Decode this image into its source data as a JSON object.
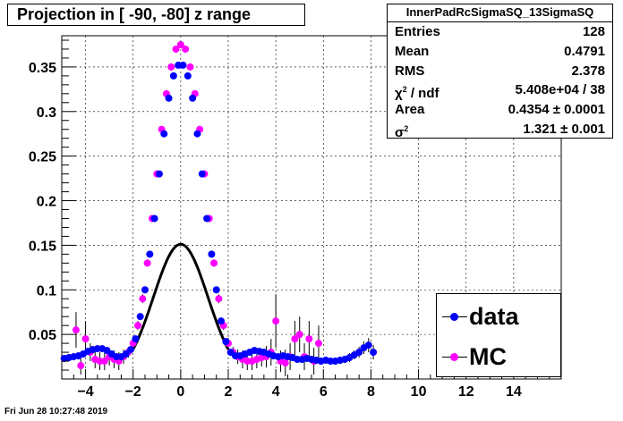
{
  "plot": {
    "title": "Projection in [ -90, -80] z range",
    "timestamp": "Fri Jun 28 10:27:48 2019"
  },
  "stats": {
    "name": "InnerPadRcSigmaSQ_13SigmaSQ",
    "rows": [
      {
        "key": "Entries",
        "value": "128"
      },
      {
        "key": "Mean",
        "value": "0.4791"
      },
      {
        "key": "RMS",
        "value": "2.378"
      },
      {
        "key": "χ² / ndf",
        "value": "5.408e+04 / 38"
      },
      {
        "key": "Area",
        "value": "0.4354  ± 0.0001"
      },
      {
        "key": "σ²",
        "value": "1.321 ± 0.001"
      }
    ]
  },
  "colors": {
    "data": "#0000ff",
    "mc": "#ff00ff",
    "fit": "#000000",
    "grid": "#000000"
  },
  "chart_data": {
    "type": "scatter",
    "xlim": [
      -5,
      16
    ],
    "ylim": [
      0,
      0.385
    ],
    "x_ticks": [
      -4,
      -2,
      0,
      2,
      4,
      6,
      8,
      10,
      12,
      14
    ],
    "y_ticks": [
      0.05,
      0.1,
      0.15,
      0.2,
      0.25,
      0.3,
      0.35
    ],
    "grid": true,
    "legend_position": "bottom-right",
    "fit_sigma2": 1.321,
    "fit_area": 0.4354,
    "series": [
      {
        "name": "data",
        "x": [
          -4.9,
          -4.7,
          -4.5,
          -4.3,
          -4.1,
          -3.9,
          -3.7,
          -3.5,
          -3.3,
          -3.1,
          -2.9,
          -2.7,
          -2.5,
          -2.3,
          -2.1,
          -1.9,
          -1.7,
          -1.5,
          -1.3,
          -1.1,
          -0.9,
          -0.7,
          -0.5,
          -0.3,
          -0.1,
          0.1,
          0.3,
          0.5,
          0.7,
          0.9,
          1.1,
          1.3,
          1.5,
          1.7,
          1.9,
          2.1,
          2.3,
          2.5,
          2.7,
          2.9,
          3.1,
          3.3,
          3.5,
          3.7,
          3.9,
          4.1,
          4.3,
          4.5,
          4.7,
          4.9,
          5.1,
          5.3,
          5.5,
          5.7,
          5.9,
          6.1,
          6.3,
          6.5,
          6.7,
          6.9,
          7.1,
          7.3,
          7.5,
          7.7,
          7.9,
          8.1
        ],
        "y": [
          0.023,
          0.024,
          0.025,
          0.026,
          0.028,
          0.031,
          0.033,
          0.034,
          0.034,
          0.032,
          0.028,
          0.025,
          0.025,
          0.028,
          0.033,
          0.045,
          0.07,
          0.1,
          0.14,
          0.18,
          0.23,
          0.275,
          0.315,
          0.34,
          0.352,
          0.352,
          0.34,
          0.315,
          0.275,
          0.23,
          0.18,
          0.14,
          0.1,
          0.065,
          0.042,
          0.03,
          0.026,
          0.026,
          0.028,
          0.03,
          0.032,
          0.031,
          0.03,
          0.028,
          0.026,
          0.025,
          0.026,
          0.025,
          0.024,
          0.022,
          0.022,
          0.023,
          0.022,
          0.021,
          0.02,
          0.021,
          0.02,
          0.02,
          0.021,
          0.022,
          0.024,
          0.027,
          0.03,
          0.035,
          0.038,
          0.03
        ],
        "err": [
          0.004,
          0.004,
          0.004,
          0.004,
          0.004,
          0.004,
          0.004,
          0.004,
          0.004,
          0.004,
          0.004,
          0.004,
          0.004,
          0.004,
          0.003,
          0.003,
          0.003,
          0.003,
          0.003,
          0.003,
          0.003,
          0.003,
          0.003,
          0.003,
          0.003,
          0.003,
          0.003,
          0.003,
          0.003,
          0.003,
          0.003,
          0.003,
          0.003,
          0.003,
          0.003,
          0.003,
          0.004,
          0.004,
          0.004,
          0.004,
          0.004,
          0.004,
          0.004,
          0.004,
          0.004,
          0.004,
          0.004,
          0.004,
          0.004,
          0.004,
          0.004,
          0.004,
          0.004,
          0.004,
          0.004,
          0.004,
          0.004,
          0.004,
          0.004,
          0.004,
          0.005,
          0.005,
          0.006,
          0.007,
          0.008,
          0.008
        ]
      },
      {
        "name": "MC",
        "x": [
          -4.4,
          -4.2,
          -4.0,
          -3.8,
          -3.6,
          -3.4,
          -3.2,
          -3.0,
          -2.8,
          -2.6,
          -2.4,
          -2.2,
          -2.0,
          -1.8,
          -1.6,
          -1.4,
          -1.2,
          -1.0,
          -0.8,
          -0.6,
          -0.4,
          -0.2,
          0.0,
          0.2,
          0.4,
          0.6,
          0.8,
          1.0,
          1.2,
          1.4,
          1.6,
          1.8,
          2.0,
          2.2,
          2.4,
          2.6,
          2.8,
          3.0,
          3.2,
          3.4,
          3.6,
          3.8,
          4.0,
          4.2,
          4.4,
          4.6,
          4.8,
          5.0,
          5.2,
          5.4,
          5.6,
          5.8
        ],
        "y": [
          0.055,
          0.015,
          0.045,
          0.03,
          0.022,
          0.02,
          0.02,
          0.025,
          0.022,
          0.02,
          0.025,
          0.03,
          0.04,
          0.06,
          0.09,
          0.13,
          0.18,
          0.23,
          0.28,
          0.32,
          0.35,
          0.37,
          0.375,
          0.37,
          0.35,
          0.32,
          0.28,
          0.23,
          0.18,
          0.13,
          0.09,
          0.06,
          0.04,
          0.03,
          0.025,
          0.022,
          0.02,
          0.02,
          0.022,
          0.024,
          0.025,
          0.03,
          0.065,
          0.02,
          0.018,
          0.025,
          0.045,
          0.05,
          0.025,
          0.045,
          0.02,
          0.04
        ],
        "err": [
          0.02,
          0.01,
          0.02,
          0.01,
          0.01,
          0.01,
          0.01,
          0.01,
          0.01,
          0.01,
          0.008,
          0.006,
          0.006,
          0.005,
          0.005,
          0.004,
          0.004,
          0.004,
          0.004,
          0.004,
          0.004,
          0.004,
          0.004,
          0.004,
          0.004,
          0.004,
          0.004,
          0.004,
          0.004,
          0.004,
          0.005,
          0.005,
          0.006,
          0.006,
          0.008,
          0.01,
          0.01,
          0.01,
          0.01,
          0.01,
          0.012,
          0.015,
          0.03,
          0.012,
          0.015,
          0.015,
          0.02,
          0.02,
          0.015,
          0.02,
          0.015,
          0.02
        ]
      }
    ]
  }
}
